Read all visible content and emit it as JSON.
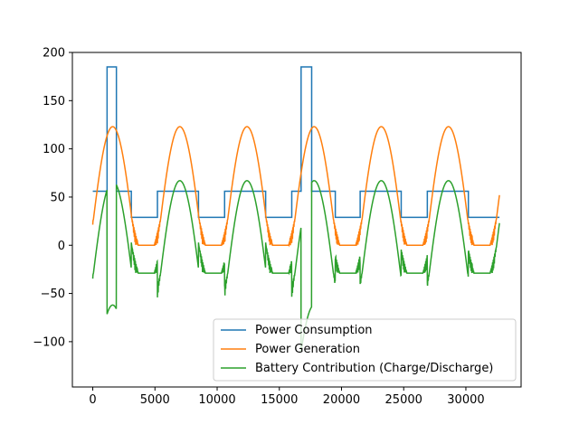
{
  "chart_data": {
    "type": "line",
    "title": "",
    "xlabel": "",
    "ylabel": "",
    "xlim": [
      -1640,
      34440
    ],
    "ylim": [
      -147,
      200
    ],
    "x_ticks": [
      0,
      5000,
      10000,
      15000,
      20000,
      25000,
      30000
    ],
    "x_tick_labels": [
      "0",
      "5000",
      "10000",
      "15000",
      "20000",
      "25000",
      "30000"
    ],
    "y_ticks": [
      -100,
      -50,
      0,
      50,
      100,
      150,
      200
    ],
    "y_tick_labels": [
      "−100",
      "−50",
      "0",
      "50",
      "100",
      "150",
      "200"
    ],
    "grid": false,
    "legend_position": "lower-right",
    "series": [
      {
        "name": "Power Consumption",
        "color": "#1f77b4",
        "step_points": [
          [
            0,
            56
          ],
          [
            1150,
            56
          ],
          [
            1150,
            185
          ],
          [
            1900,
            185
          ],
          [
            1900,
            56
          ],
          [
            3100,
            56
          ],
          [
            3100,
            29
          ],
          [
            5200,
            29
          ],
          [
            5200,
            56
          ],
          [
            8500,
            56
          ],
          [
            8500,
            29
          ],
          [
            10600,
            29
          ],
          [
            10600,
            56
          ],
          [
            13900,
            56
          ],
          [
            13900,
            29
          ],
          [
            16000,
            29
          ],
          [
            16000,
            56
          ],
          [
            16750,
            56
          ],
          [
            16750,
            185
          ],
          [
            17600,
            185
          ],
          [
            17600,
            56
          ],
          [
            19500,
            56
          ],
          [
            19500,
            29
          ],
          [
            21500,
            29
          ],
          [
            21500,
            56
          ],
          [
            24800,
            56
          ],
          [
            24800,
            29
          ],
          [
            26900,
            29
          ],
          [
            26900,
            56
          ],
          [
            30200,
            56
          ],
          [
            30200,
            29
          ],
          [
            32700,
            29
          ]
        ]
      },
      {
        "name": "Power Generation",
        "color": "#ff7f0e",
        "period": 5400,
        "peak_value": 123,
        "first_peak_x": 1600,
        "arch_half_width": 1800,
        "start_x": 0,
        "end_x": 32700
      },
      {
        "name": "Battery Contribution (Charge/Discharge)",
        "color": "#2ca02c",
        "rule": "generation minus consumption"
      }
    ]
  }
}
